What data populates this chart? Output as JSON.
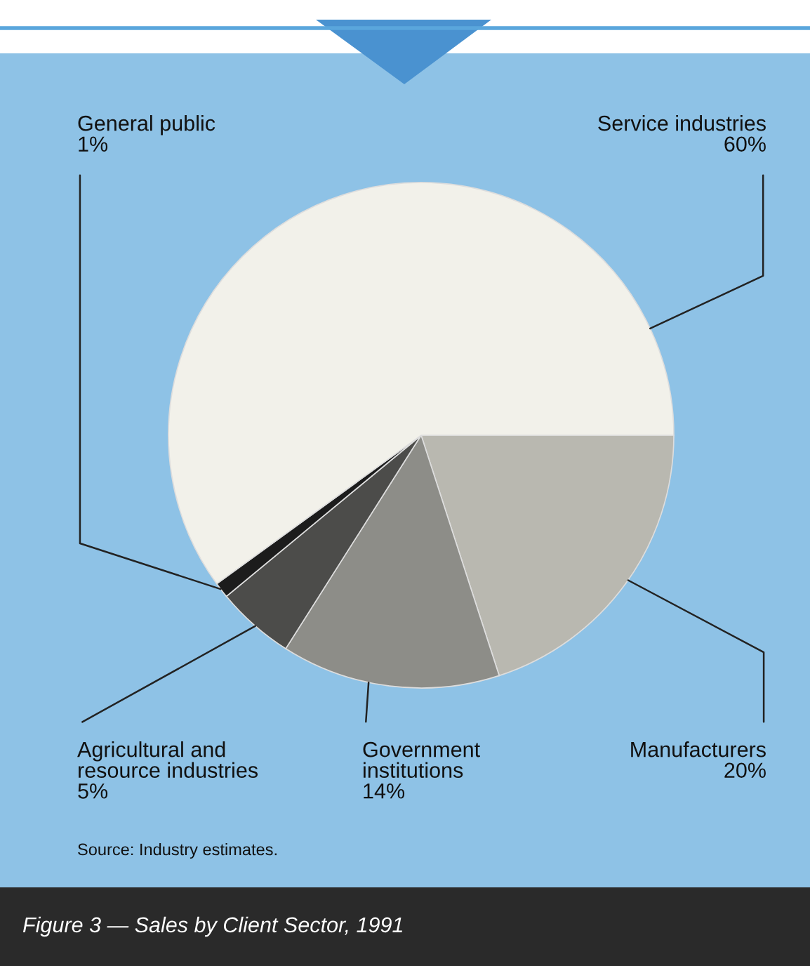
{
  "chart_data": {
    "type": "pie",
    "title": "Figure 3 — Sales by Client Sector, 1991",
    "categories": [
      "Manufacturers",
      "Government\ninstitutions",
      "Agricultural and\nresource industries",
      "General public",
      "Service industries"
    ],
    "values": [
      20,
      14,
      5,
      1,
      60
    ],
    "value_labels": [
      "20%",
      "14%",
      "5%",
      "1%",
      "60%"
    ],
    "colors": [
      "#b9b8b0",
      "#8d8d88",
      "#4c4c4a",
      "#1c1c1c",
      "#f2f1ea"
    ],
    "annotations": [
      "Source: Industry estimates."
    ]
  }
}
